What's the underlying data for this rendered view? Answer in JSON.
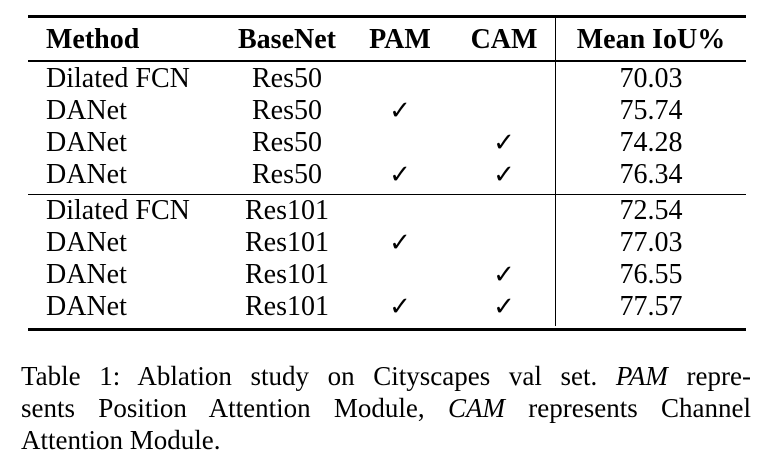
{
  "table": {
    "headers": {
      "method": "Method",
      "basenet": "BaseNet",
      "pam": "PAM",
      "cam": "CAM",
      "miou": "Mean IoU%"
    },
    "check_symbol": "✓",
    "rows": [
      {
        "method": "Dilated FCN",
        "basenet": "Res50",
        "pam": "",
        "cam": "",
        "miou": "70.03"
      },
      {
        "method": "DANet",
        "basenet": "Res50",
        "pam": "✓",
        "cam": "",
        "miou": "75.74"
      },
      {
        "method": "DANet",
        "basenet": "Res50",
        "pam": "",
        "cam": "✓",
        "miou": "74.28"
      },
      {
        "method": "DANet",
        "basenet": "Res50",
        "pam": "✓",
        "cam": "✓",
        "miou": "76.34"
      },
      {
        "method": "Dilated FCN",
        "basenet": "Res101",
        "pam": "",
        "cam": "",
        "miou": "72.54"
      },
      {
        "method": "DANet",
        "basenet": "Res101",
        "pam": "✓",
        "cam": "",
        "miou": "77.03"
      },
      {
        "method": "DANet",
        "basenet": "Res101",
        "pam": "",
        "cam": "✓",
        "miou": "76.55"
      },
      {
        "method": "DANet",
        "basenet": "Res101",
        "pam": "✓",
        "cam": "✓",
        "miou": "77.57"
      }
    ]
  },
  "caption": {
    "line1_part1": "Table 1: Ablation study on Cityscapes val set.",
    "line1_em": "PAM",
    "line1_part2": "repre-",
    "line2_part1": "sents Position Attention Module,",
    "line2_em": "CAM",
    "line2_part2": "represents Channel",
    "line3": "Attention Module."
  }
}
